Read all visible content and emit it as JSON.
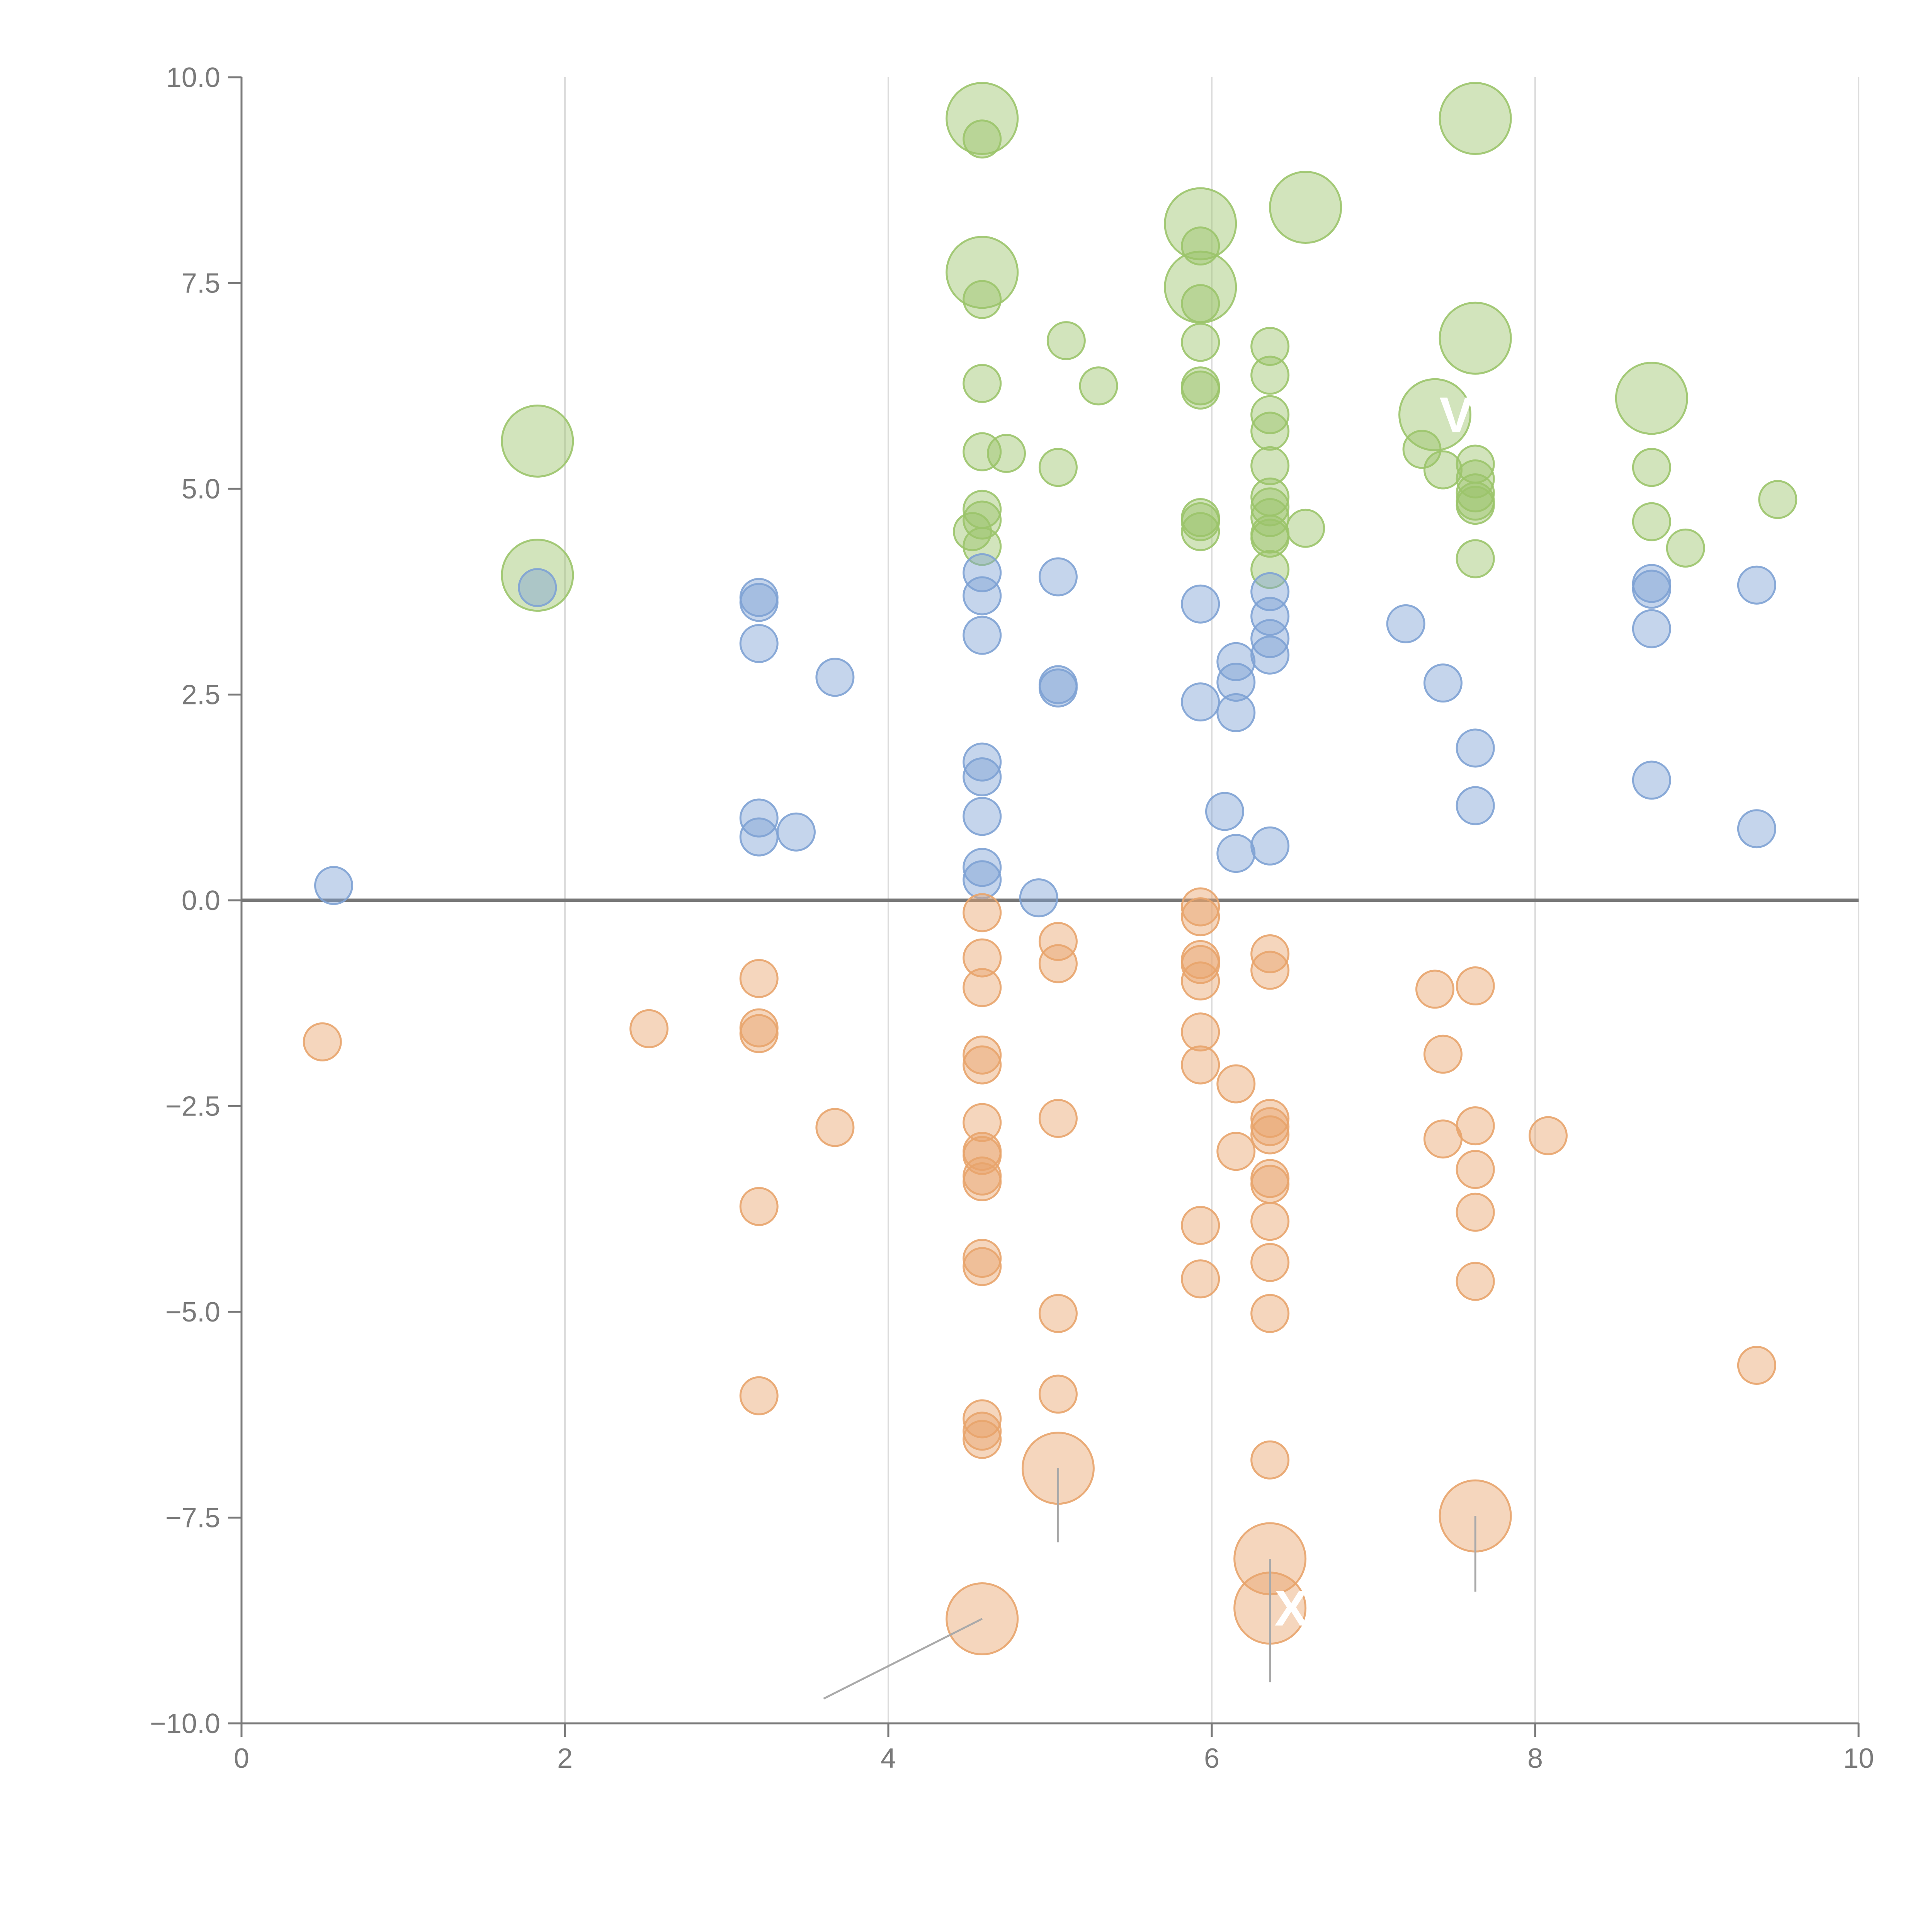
{
  "chart_data": {
    "type": "scatter",
    "title": "",
    "xlabel": "",
    "ylabel": "",
    "xlim": [
      0,
      10
    ],
    "ylim": [
      -10,
      10
    ],
    "x_ticks": [
      0,
      2,
      4,
      6,
      8,
      10
    ],
    "y_ticks": [
      -10,
      -7.5,
      -5,
      -2.5,
      0,
      2.5,
      5,
      7.5,
      10
    ],
    "x_tick_labels": [
      "0",
      "2",
      "4",
      "6",
      "8",
      "10"
    ],
    "y_tick_labels": [
      "−10.0",
      "−7.5",
      "−5.0",
      "−2.5",
      "0.0",
      "2.5",
      "5.0",
      "7.5",
      "10.0"
    ],
    "grid": "vertical",
    "zero_line": true,
    "series": [
      {
        "name": "green",
        "color": "#9bc46a",
        "points": [
          [
            1.83,
            5.58,
            "large"
          ],
          [
            1.83,
            3.95,
            "large"
          ],
          [
            4.58,
            9.5,
            "large"
          ],
          [
            4.58,
            9.25
          ],
          [
            4.58,
            7.63,
            "large"
          ],
          [
            4.58,
            7.3
          ],
          [
            4.58,
            6.28
          ],
          [
            4.58,
            5.45
          ],
          [
            4.73,
            5.43
          ],
          [
            4.58,
            4.75
          ],
          [
            4.58,
            4.62
          ],
          [
            4.52,
            4.48
          ],
          [
            4.58,
            4.3
          ],
          [
            5.1,
            6.8
          ],
          [
            5.3,
            6.25
          ],
          [
            5.05,
            5.26
          ],
          [
            5.93,
            8.22,
            "large"
          ],
          [
            5.93,
            7.95
          ],
          [
            5.93,
            7.45,
            "large"
          ],
          [
            5.93,
            7.25
          ],
          [
            5.93,
            6.78
          ],
          [
            5.93,
            6.25
          ],
          [
            5.93,
            6.2
          ],
          [
            5.93,
            4.65
          ],
          [
            5.93,
            4.6
          ],
          [
            5.93,
            4.48
          ],
          [
            6.36,
            6.73
          ],
          [
            6.36,
            6.38
          ],
          [
            6.36,
            5.9
          ],
          [
            6.36,
            5.7
          ],
          [
            6.36,
            5.28
          ],
          [
            6.36,
            4.9
          ],
          [
            6.36,
            4.78
          ],
          [
            6.36,
            4.65
          ],
          [
            6.36,
            4.45
          ],
          [
            6.36,
            4.4
          ],
          [
            6.36,
            4.02
          ],
          [
            6.58,
            8.42,
            "large"
          ],
          [
            6.58,
            4.52
          ],
          [
            7.63,
            9.5,
            "large"
          ],
          [
            7.63,
            6.83,
            "large"
          ],
          [
            7.38,
            5.9,
            "large"
          ],
          [
            7.3,
            5.48
          ],
          [
            7.43,
            5.23
          ],
          [
            7.63,
            5.3
          ],
          [
            7.63,
            5.12
          ],
          [
            7.63,
            4.95
          ],
          [
            7.63,
            4.85
          ],
          [
            7.63,
            4.8
          ],
          [
            7.63,
            4.15
          ],
          [
            8.72,
            6.1,
            "large"
          ],
          [
            8.72,
            5.26
          ],
          [
            8.72,
            4.6
          ],
          [
            8.93,
            4.28
          ],
          [
            9.5,
            4.87
          ]
        ]
      },
      {
        "name": "blue",
        "color": "#7ea2d4",
        "points": [
          [
            0.57,
            0.18
          ],
          [
            1.83,
            3.8
          ],
          [
            3.2,
            3.68
          ],
          [
            3.2,
            3.62
          ],
          [
            3.2,
            3.12
          ],
          [
            3.2,
            1.0
          ],
          [
            3.2,
            0.77
          ],
          [
            3.43,
            0.83
          ],
          [
            3.67,
            2.71
          ],
          [
            4.58,
            3.98
          ],
          [
            4.58,
            3.7
          ],
          [
            4.58,
            3.22
          ],
          [
            4.58,
            1.68
          ],
          [
            4.58,
            1.5
          ],
          [
            4.58,
            1.02
          ],
          [
            4.58,
            0.4
          ],
          [
            4.58,
            0.25
          ],
          [
            4.93,
            0.03
          ],
          [
            5.05,
            3.93
          ],
          [
            5.05,
            2.62
          ],
          [
            5.05,
            2.58
          ],
          [
            5.93,
            3.6
          ],
          [
            5.93,
            2.41
          ],
          [
            6.08,
            1.08
          ],
          [
            6.15,
            2.9
          ],
          [
            6.15,
            2.65
          ],
          [
            6.15,
            2.28
          ],
          [
            6.15,
            0.57
          ],
          [
            6.36,
            3.75
          ],
          [
            6.36,
            3.45
          ],
          [
            6.36,
            3.18
          ],
          [
            6.36,
            2.98
          ],
          [
            6.36,
            0.66
          ],
          [
            7.2,
            3.36
          ],
          [
            7.43,
            2.64
          ],
          [
            7.63,
            1.85
          ],
          [
            7.63,
            1.15
          ],
          [
            8.72,
            3.85
          ],
          [
            8.72,
            3.78
          ],
          [
            8.72,
            3.3
          ],
          [
            8.72,
            1.46
          ],
          [
            9.37,
            3.83
          ],
          [
            9.37,
            0.87
          ]
        ]
      },
      {
        "name": "orange",
        "color": "#e8a46c",
        "points": [
          [
            0.5,
            -1.72
          ],
          [
            2.52,
            -1.56
          ],
          [
            3.2,
            -0.95
          ],
          [
            3.2,
            -1.55
          ],
          [
            3.2,
            -1.62
          ],
          [
            3.2,
            -3.72
          ],
          [
            3.2,
            -6.02
          ],
          [
            3.67,
            -2.76
          ],
          [
            4.58,
            -0.15
          ],
          [
            4.58,
            -0.7
          ],
          [
            4.58,
            -1.06
          ],
          [
            4.58,
            -1.88
          ],
          [
            4.58,
            -2.0
          ],
          [
            4.58,
            -2.7
          ],
          [
            4.58,
            -3.05
          ],
          [
            4.58,
            -3.1
          ],
          [
            4.58,
            -3.35
          ],
          [
            4.58,
            -3.42
          ],
          [
            4.58,
            -4.35
          ],
          [
            4.58,
            -4.45
          ],
          [
            4.58,
            -6.3
          ],
          [
            4.58,
            -6.45
          ],
          [
            4.58,
            -6.55
          ],
          [
            4.58,
            -8.73,
            "large"
          ],
          [
            5.05,
            -0.5
          ],
          [
            5.05,
            -0.77
          ],
          [
            5.05,
            -2.65
          ],
          [
            5.05,
            -5.02
          ],
          [
            5.05,
            -6.0
          ],
          [
            5.05,
            -6.9,
            "large"
          ],
          [
            5.93,
            -0.08
          ],
          [
            5.93,
            -0.2
          ],
          [
            5.93,
            -0.72
          ],
          [
            5.93,
            -0.78
          ],
          [
            5.93,
            -0.98
          ],
          [
            5.93,
            -1.6
          ],
          [
            5.93,
            -2.0
          ],
          [
            5.93,
            -3.95
          ],
          [
            5.93,
            -4.6
          ],
          [
            6.15,
            -2.23
          ],
          [
            6.15,
            -3.05
          ],
          [
            6.36,
            -0.65
          ],
          [
            6.36,
            -0.85
          ],
          [
            6.36,
            -2.65
          ],
          [
            6.36,
            -2.75
          ],
          [
            6.36,
            -2.85
          ],
          [
            6.36,
            -3.38
          ],
          [
            6.36,
            -3.45
          ],
          [
            6.36,
            -3.9
          ],
          [
            6.36,
            -4.4
          ],
          [
            6.36,
            -5.02
          ],
          [
            6.36,
            -6.8
          ],
          [
            6.36,
            -8.0,
            "large"
          ],
          [
            6.36,
            -8.6,
            "large"
          ],
          [
            7.38,
            -1.08
          ],
          [
            7.43,
            -1.87
          ],
          [
            7.43,
            -2.9
          ],
          [
            7.63,
            -1.04
          ],
          [
            7.63,
            -2.74
          ],
          [
            7.63,
            -3.27
          ],
          [
            7.63,
            -3.79
          ],
          [
            7.63,
            -4.63
          ],
          [
            7.63,
            -7.48,
            "large"
          ],
          [
            8.08,
            -2.86
          ],
          [
            9.37,
            -5.65
          ]
        ]
      }
    ],
    "annotations": [
      {
        "text": "X",
        "x": 6.36,
        "y": -8.6
      },
      {
        "text": "V",
        "x": 7.38,
        "y": 5.9
      }
    ]
  }
}
